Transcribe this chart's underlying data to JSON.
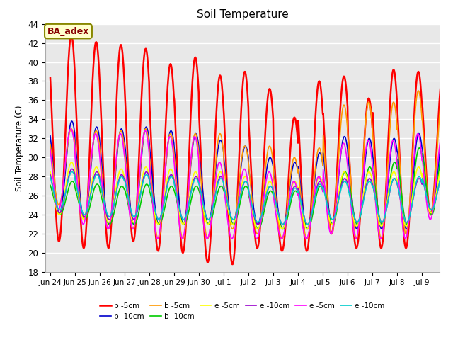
{
  "title": "Soil Temperature",
  "ylabel": "Soil Temperature (C)",
  "ylim": [
    18,
    44
  ],
  "yticks": [
    18,
    20,
    22,
    24,
    26,
    28,
    30,
    32,
    34,
    36,
    38,
    40,
    42,
    44
  ],
  "bg_color": "#e8e8e8",
  "plot_bg": "#e8e8e8",
  "annotation_text": "BA_adex",
  "annotation_bg": "#ffffcc",
  "annotation_border": "#888800",
  "annotation_text_color": "#880000",
  "legend": [
    {
      "label": "b -5cm",
      "color": "#ff0000",
      "lw": 1.8
    },
    {
      "label": "b -10cm",
      "color": "#0000cc",
      "lw": 1.2
    },
    {
      "label": "b -5cm",
      "color": "#ff9900",
      "lw": 1.2
    },
    {
      "label": "b -10cm",
      "color": "#00cc00",
      "lw": 1.2
    },
    {
      "label": "e -5cm",
      "color": "#ffff00",
      "lw": 1.2
    },
    {
      "label": "e -10cm",
      "color": "#9900cc",
      "lw": 1.2
    },
    {
      "label": "e -5cm",
      "color": "#ff00ff",
      "lw": 1.2
    },
    {
      "label": "e -10cm",
      "color": "#00cccc",
      "lw": 1.2
    }
  ],
  "tick_labels": [
    "Jun 24",
    "Jun 25",
    "Jun 26",
    "Jun 27",
    "Jun 28",
    "Jun 29",
    "Jun 30",
    "Jul 1",
    "Jul 2",
    "Jul 3",
    "Jul 4",
    "Jul 5",
    "Jul 6",
    "Jul 7",
    "Jul 8",
    "Jul 9"
  ],
  "red_peaks": [
    42.8,
    42.1,
    41.8,
    41.4,
    39.8,
    40.5,
    38.6,
    39.0,
    37.2,
    34.2,
    38.0,
    38.5,
    36.2,
    39.2,
    39.0,
    39.0
  ],
  "red_troughs": [
    21.2,
    20.5,
    20.5,
    21.2,
    20.2,
    20.0,
    19.0,
    18.8,
    20.5,
    20.2,
    20.2,
    22.0,
    20.5,
    20.5,
    20.5,
    24.0
  ],
  "ora_peaks": [
    33.0,
    32.8,
    32.8,
    33.0,
    32.5,
    32.5,
    32.5,
    31.2,
    31.2,
    30.0,
    31.0,
    35.5,
    35.8,
    35.8,
    37.0,
    37.0
  ],
  "ora_troughs": [
    25.0,
    23.5,
    22.5,
    22.5,
    21.5,
    21.5,
    21.5,
    22.5,
    22.0,
    21.5,
    21.5,
    22.0,
    21.5,
    21.5,
    22.0,
    24.0
  ],
  "mag_peaks": [
    33.0,
    32.5,
    32.5,
    32.8,
    32.2,
    32.2,
    29.5,
    28.8,
    28.5,
    27.5,
    28.0,
    31.5,
    31.8,
    31.8,
    32.5,
    32.5
  ],
  "mag_troughs": [
    24.5,
    23.0,
    22.5,
    22.5,
    21.5,
    21.5,
    21.5,
    21.5,
    21.5,
    21.5,
    21.5,
    22.0,
    21.5,
    21.5,
    21.5,
    23.5
  ],
  "blu_peaks": [
    33.8,
    33.2,
    33.0,
    33.2,
    32.8,
    32.5,
    31.8,
    31.2,
    30.0,
    29.5,
    30.5,
    32.2,
    32.0,
    32.0,
    32.5,
    32.5
  ],
  "blu_troughs": [
    24.0,
    23.5,
    23.0,
    23.0,
    23.0,
    23.0,
    23.0,
    23.0,
    23.0,
    22.5,
    22.5,
    23.0,
    22.5,
    22.5,
    22.5,
    24.0
  ],
  "grn_peaks": [
    27.5,
    27.2,
    27.0,
    27.2,
    27.0,
    27.0,
    27.0,
    27.0,
    26.5,
    26.5,
    27.0,
    28.5,
    29.0,
    29.5,
    31.0,
    31.5
  ],
  "grn_troughs": [
    24.0,
    23.5,
    23.0,
    23.0,
    23.0,
    23.0,
    23.0,
    23.0,
    22.5,
    22.5,
    22.5,
    23.0,
    23.0,
    23.0,
    23.0,
    24.0
  ],
  "yel_peaks": [
    29.5,
    29.0,
    28.8,
    29.0,
    28.8,
    28.5,
    28.5,
    28.0,
    27.5,
    27.5,
    28.0,
    28.5,
    28.5,
    28.5,
    29.0,
    29.5
  ],
  "yel_troughs": [
    24.0,
    23.5,
    23.2,
    23.2,
    23.0,
    23.0,
    23.0,
    23.0,
    22.5,
    22.5,
    22.5,
    23.0,
    22.8,
    22.8,
    22.8,
    24.2
  ],
  "pur_peaks": [
    28.8,
    28.5,
    28.2,
    28.5,
    28.2,
    28.0,
    28.0,
    27.5,
    27.0,
    27.0,
    27.5,
    27.8,
    27.8,
    27.8,
    27.8,
    28.5
  ],
  "pur_troughs": [
    24.2,
    23.8,
    23.5,
    23.5,
    23.5,
    23.5,
    23.5,
    23.5,
    23.0,
    23.0,
    23.0,
    23.5,
    23.2,
    23.2,
    23.2,
    24.5
  ],
  "cya_peaks": [
    28.5,
    28.2,
    28.0,
    28.2,
    28.0,
    27.8,
    27.8,
    27.5,
    27.0,
    26.8,
    27.2,
    27.5,
    27.5,
    27.8,
    28.0,
    28.5
  ],
  "cya_troughs": [
    24.5,
    24.0,
    23.8,
    23.8,
    23.5,
    23.5,
    23.5,
    23.5,
    23.2,
    23.0,
    23.0,
    23.5,
    23.2,
    23.2,
    23.2,
    24.5
  ]
}
